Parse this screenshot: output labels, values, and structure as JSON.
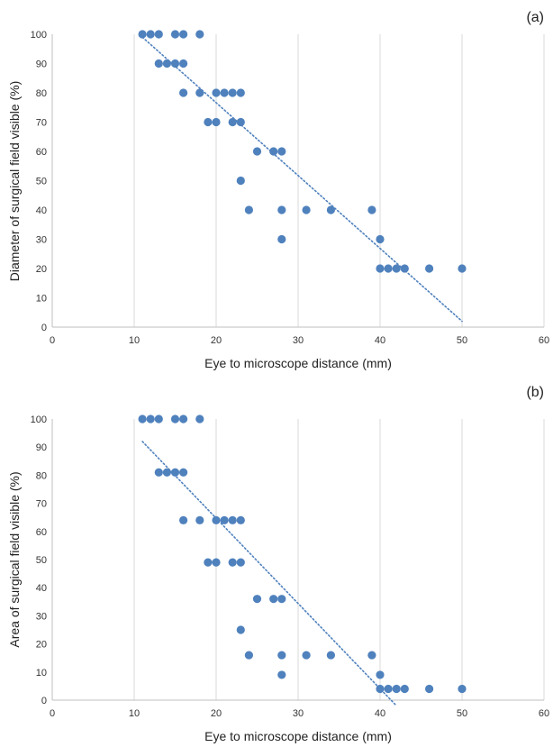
{
  "chart_data": [
    {
      "type": "scatter",
      "panel_label": "(a)",
      "xlabel": "Eye to microscope distance (mm)",
      "ylabel": "Diameter of surgical field visible (%)",
      "xlim": [
        0,
        60
      ],
      "ylim": [
        0,
        100
      ],
      "xticks": [
        0,
        10,
        20,
        30,
        40,
        50,
        60
      ],
      "yticks": [
        0,
        10,
        20,
        30,
        40,
        50,
        60,
        70,
        80,
        90,
        100
      ],
      "grid": "vertical",
      "marker_color": "#4f81bd",
      "trendline": {
        "type": "linear",
        "x": [
          11,
          50
        ],
        "y": [
          99,
          2
        ]
      },
      "points": [
        {
          "x": 11,
          "y": 100
        },
        {
          "x": 12,
          "y": 100
        },
        {
          "x": 13,
          "y": 100
        },
        {
          "x": 15,
          "y": 100
        },
        {
          "x": 16,
          "y": 100
        },
        {
          "x": 18,
          "y": 100
        },
        {
          "x": 13,
          "y": 90
        },
        {
          "x": 14,
          "y": 90
        },
        {
          "x": 15,
          "y": 90
        },
        {
          "x": 16,
          "y": 90
        },
        {
          "x": 16,
          "y": 80
        },
        {
          "x": 18,
          "y": 80
        },
        {
          "x": 20,
          "y": 80
        },
        {
          "x": 21,
          "y": 80
        },
        {
          "x": 22,
          "y": 80
        },
        {
          "x": 23,
          "y": 80
        },
        {
          "x": 19,
          "y": 70
        },
        {
          "x": 20,
          "y": 70
        },
        {
          "x": 22,
          "y": 70
        },
        {
          "x": 23,
          "y": 70
        },
        {
          "x": 25,
          "y": 60
        },
        {
          "x": 27,
          "y": 60
        },
        {
          "x": 28,
          "y": 60
        },
        {
          "x": 23,
          "y": 50
        },
        {
          "x": 24,
          "y": 40
        },
        {
          "x": 28,
          "y": 40
        },
        {
          "x": 31,
          "y": 40
        },
        {
          "x": 34,
          "y": 40
        },
        {
          "x": 39,
          "y": 40
        },
        {
          "x": 28,
          "y": 30
        },
        {
          "x": 40,
          "y": 30
        },
        {
          "x": 40,
          "y": 20
        },
        {
          "x": 41,
          "y": 20
        },
        {
          "x": 42,
          "y": 20
        },
        {
          "x": 43,
          "y": 20
        },
        {
          "x": 46,
          "y": 20
        },
        {
          "x": 50,
          "y": 20
        }
      ]
    },
    {
      "type": "scatter",
      "panel_label": "(b)",
      "xlabel": "Eye to microscope distance (mm)",
      "ylabel": "Area of surgical field visible (%)",
      "xlim": [
        0,
        60
      ],
      "ylim": [
        0,
        100
      ],
      "xticks": [
        0,
        10,
        20,
        30,
        40,
        50,
        60
      ],
      "yticks": [
        0,
        10,
        20,
        30,
        40,
        50,
        60,
        70,
        80,
        90,
        100
      ],
      "grid": "vertical",
      "marker_color": "#4f81bd",
      "trendline": {
        "type": "linear",
        "x": [
          11,
          42
        ],
        "y": [
          92,
          -2
        ]
      },
      "points": [
        {
          "x": 11,
          "y": 100
        },
        {
          "x": 12,
          "y": 100
        },
        {
          "x": 13,
          "y": 100
        },
        {
          "x": 15,
          "y": 100
        },
        {
          "x": 16,
          "y": 100
        },
        {
          "x": 18,
          "y": 100
        },
        {
          "x": 13,
          "y": 81
        },
        {
          "x": 14,
          "y": 81
        },
        {
          "x": 15,
          "y": 81
        },
        {
          "x": 16,
          "y": 81
        },
        {
          "x": 16,
          "y": 64
        },
        {
          "x": 18,
          "y": 64
        },
        {
          "x": 20,
          "y": 64
        },
        {
          "x": 21,
          "y": 64
        },
        {
          "x": 22,
          "y": 64
        },
        {
          "x": 23,
          "y": 64
        },
        {
          "x": 19,
          "y": 49
        },
        {
          "x": 20,
          "y": 49
        },
        {
          "x": 22,
          "y": 49
        },
        {
          "x": 23,
          "y": 49
        },
        {
          "x": 25,
          "y": 36
        },
        {
          "x": 27,
          "y": 36
        },
        {
          "x": 28,
          "y": 36
        },
        {
          "x": 23,
          "y": 25
        },
        {
          "x": 24,
          "y": 16
        },
        {
          "x": 28,
          "y": 16
        },
        {
          "x": 31,
          "y": 16
        },
        {
          "x": 34,
          "y": 16
        },
        {
          "x": 39,
          "y": 16
        },
        {
          "x": 28,
          "y": 9
        },
        {
          "x": 40,
          "y": 9
        },
        {
          "x": 40,
          "y": 4
        },
        {
          "x": 41,
          "y": 4
        },
        {
          "x": 42,
          "y": 4
        },
        {
          "x": 43,
          "y": 4
        },
        {
          "x": 46,
          "y": 4
        },
        {
          "x": 50,
          "y": 4
        }
      ]
    }
  ]
}
